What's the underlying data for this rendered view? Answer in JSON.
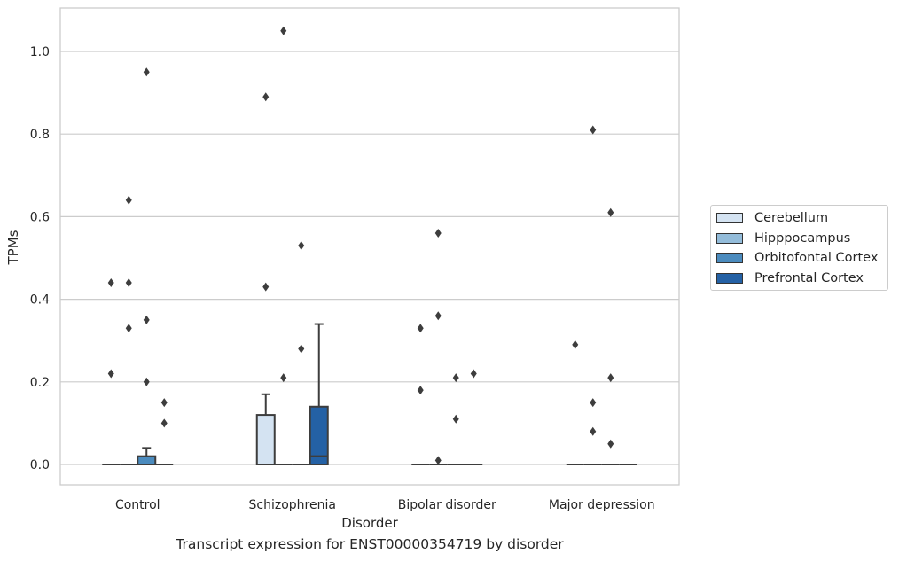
{
  "chart_data": {
    "type": "box",
    "xlabel": "Disorder",
    "ylabel": "TPMs",
    "caption": "Transcript expression for ENST00000354719 by disorder",
    "ylim": [
      -0.05,
      1.1
    ],
    "yticks": [
      "0.0",
      "0.2",
      "0.4",
      "0.6",
      "0.8",
      "1.0"
    ],
    "grid": "horizontal",
    "legend_position": "right",
    "categories": [
      "Control",
      "Schizophrenia",
      "Bipolar disorder",
      "Major depression"
    ],
    "hue": [
      {
        "name": "Cerebellum",
        "color": "#d4e3f2"
      },
      {
        "name": "Hipppocampus",
        "color": "#93bcda"
      },
      {
        "name": "Orbitofontal Cortex",
        "color": "#4b8bbe"
      },
      {
        "name": "Prefrontal Cortex",
        "color": "#2461a5"
      }
    ],
    "boxes": [
      {
        "category": "Control",
        "hue": "Cerebellum",
        "q1": 0,
        "median": 0,
        "q3": 0,
        "whisker_low": 0,
        "whisker_high": 0,
        "outliers": [
          0.22,
          0.44
        ]
      },
      {
        "category": "Control",
        "hue": "Hipppocampus",
        "q1": 0,
        "median": 0,
        "q3": 0,
        "whisker_low": 0,
        "whisker_high": 0,
        "outliers": [
          0.33,
          0.44,
          0.64
        ]
      },
      {
        "category": "Control",
        "hue": "Orbitofontal Cortex",
        "q1": 0,
        "median": 0,
        "q3": 0.02,
        "whisker_low": 0,
        "whisker_high": 0.04,
        "outliers": [
          0.2,
          0.35,
          0.95
        ]
      },
      {
        "category": "Control",
        "hue": "Prefrontal Cortex",
        "q1": 0,
        "median": 0,
        "q3": 0,
        "whisker_low": 0,
        "whisker_high": 0,
        "outliers": [
          0.1,
          0.15
        ]
      },
      {
        "category": "Schizophrenia",
        "hue": "Cerebellum",
        "q1": 0,
        "median": 0,
        "q3": 0.12,
        "whisker_low": 0,
        "whisker_high": 0.17,
        "outliers": [
          0.43,
          0.89
        ]
      },
      {
        "category": "Schizophrenia",
        "hue": "Hipppocampus",
        "q1": 0,
        "median": 0,
        "q3": 0,
        "whisker_low": 0,
        "whisker_high": 0,
        "outliers": [
          0.21,
          1.05
        ]
      },
      {
        "category": "Schizophrenia",
        "hue": "Orbitofontal Cortex",
        "q1": 0,
        "median": 0,
        "q3": 0,
        "whisker_low": 0,
        "whisker_high": 0,
        "outliers": [
          0.28,
          0.53
        ]
      },
      {
        "category": "Schizophrenia",
        "hue": "Prefrontal Cortex",
        "q1": 0,
        "median": 0.02,
        "q3": 0.14,
        "whisker_low": 0,
        "whisker_high": 0.34,
        "outliers": []
      },
      {
        "category": "Bipolar disorder",
        "hue": "Cerebellum",
        "q1": 0,
        "median": 0,
        "q3": 0,
        "whisker_low": 0,
        "whisker_high": 0,
        "outliers": [
          0.18,
          0.33
        ]
      },
      {
        "category": "Bipolar disorder",
        "hue": "Hipppocampus",
        "q1": 0,
        "median": 0,
        "q3": 0,
        "whisker_low": 0,
        "whisker_high": 0,
        "outliers": [
          0.01,
          0.36,
          0.56
        ]
      },
      {
        "category": "Bipolar disorder",
        "hue": "Orbitofontal Cortex",
        "q1": 0,
        "median": 0,
        "q3": 0,
        "whisker_low": 0,
        "whisker_high": 0,
        "outliers": [
          0.11,
          0.21
        ]
      },
      {
        "category": "Bipolar disorder",
        "hue": "Prefrontal Cortex",
        "q1": 0,
        "median": 0,
        "q3": 0,
        "whisker_low": 0,
        "whisker_high": 0,
        "outliers": [
          0.22
        ]
      },
      {
        "category": "Major depression",
        "hue": "Cerebellum",
        "q1": 0,
        "median": 0,
        "q3": 0,
        "whisker_low": 0,
        "whisker_high": 0,
        "outliers": [
          0.29
        ]
      },
      {
        "category": "Major depression",
        "hue": "Hipppocampus",
        "q1": 0,
        "median": 0,
        "q3": 0,
        "whisker_low": 0,
        "whisker_high": 0,
        "outliers": [
          0.08,
          0.15,
          0.81
        ]
      },
      {
        "category": "Major depression",
        "hue": "Orbitofontal Cortex",
        "q1": 0,
        "median": 0,
        "q3": 0,
        "whisker_low": 0,
        "whisker_high": 0,
        "outliers": [
          0.05,
          0.21,
          0.61
        ]
      },
      {
        "category": "Major depression",
        "hue": "Prefrontal Cortex",
        "q1": 0,
        "median": 0,
        "q3": 0,
        "whisker_low": 0,
        "whisker_high": 0,
        "outliers": []
      }
    ]
  },
  "style": {
    "grid_color": "#cccccc",
    "frame_color": "#cccccc",
    "line_color": "#3d3d3d"
  }
}
